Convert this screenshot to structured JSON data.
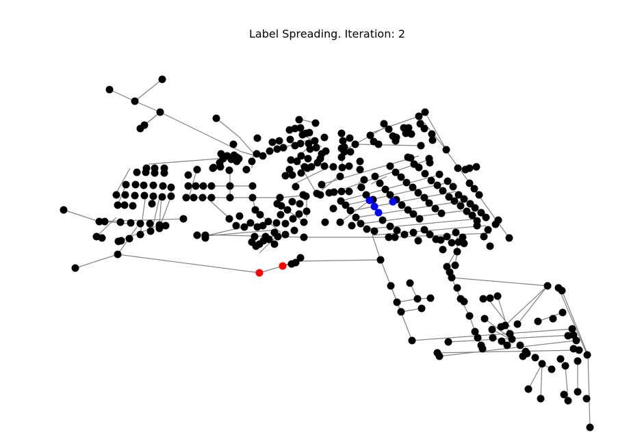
{
  "title": "Label Spreading. Iteration: 2",
  "colors": {
    "edge": "#808080",
    "unlabeled": "#000000",
    "label_blue": "#0000ff",
    "label_red": "#ff0000",
    "background": "#ffffff"
  }
}
